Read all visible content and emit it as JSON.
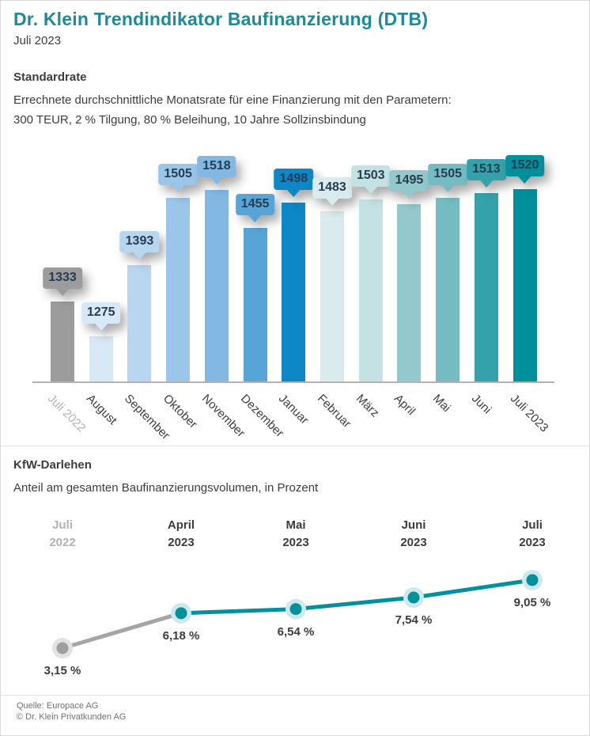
{
  "header": {
    "title": "Dr. Klein Trendindikator Baufinanzierung (DTB)",
    "subtitle": "Juli 2023"
  },
  "standardrate_section": {
    "heading": "Standardrate",
    "description_line1": "Errechnete durchschnittliche Monatsrate für eine Finanzierung mit den Parametern:",
    "description_line2": "300 TEUR, 2 % Tilgung, 80 % Beleihung, 10 Jahre Sollzinsbindung"
  },
  "kfw_section": {
    "heading": "KfW-Darlehen",
    "description": "Anteil am gesamten Baufinanzierungsvolumen, in Prozent"
  },
  "chart_data": [
    {
      "type": "bar",
      "title": "Standardrate",
      "categories": [
        "Juli 2022",
        "August",
        "September",
        "Oktober",
        "November",
        "Dezember",
        "Januar",
        "Februar",
        "März",
        "April",
        "Mai",
        "Juni",
        "Juli 2023"
      ],
      "values": [
        1333,
        1275,
        1393,
        1505,
        1518,
        1455,
        1498,
        1483,
        1503,
        1495,
        1505,
        1513,
        1520
      ],
      "bar_colors": [
        "#9c9c9c",
        "#d7e8f6",
        "#b9d6f0",
        "#9bc6e9",
        "#82b8e2",
        "#57a5d7",
        "#0d87c6",
        "#d9ebec",
        "#c4e2e3",
        "#93c9cd",
        "#74bcc2",
        "#35a1aa",
        "#00909b"
      ],
      "value_label_color": "#263c50",
      "category_color": "#3d3d3d",
      "muted_category_color": "#b2b2b2",
      "muted_categories": [
        0
      ],
      "ylim": [
        1200,
        1560
      ],
      "grid": false,
      "legend": false
    },
    {
      "type": "line",
      "categories_line1": [
        "Juli",
        "April",
        "Mai",
        "Juni",
        "Juli"
      ],
      "categories_line2": [
        "2022",
        "2023",
        "2023",
        "2023",
        "2023"
      ],
      "values": [
        3.15,
        6.18,
        6.54,
        7.54,
        9.05
      ],
      "value_labels": [
        "3,15 %",
        "6,18 %",
        "6,54 %",
        "7,54 %",
        "9,05 %"
      ],
      "line_color": "#00919c",
      "first_segment_color": "#a5a5a5",
      "point_color": "#00919c",
      "point_halo_color": "#cfe8ec",
      "muted_point_color": "#9e9e9e",
      "muted_point_halo_color": "#e2e2e2",
      "muted_categories": [
        0
      ],
      "grid": false,
      "legend": false
    }
  ],
  "footer": {
    "source": "Quelle: Europace AG",
    "copyright": "© Dr. Klein Privatkunden AG"
  }
}
